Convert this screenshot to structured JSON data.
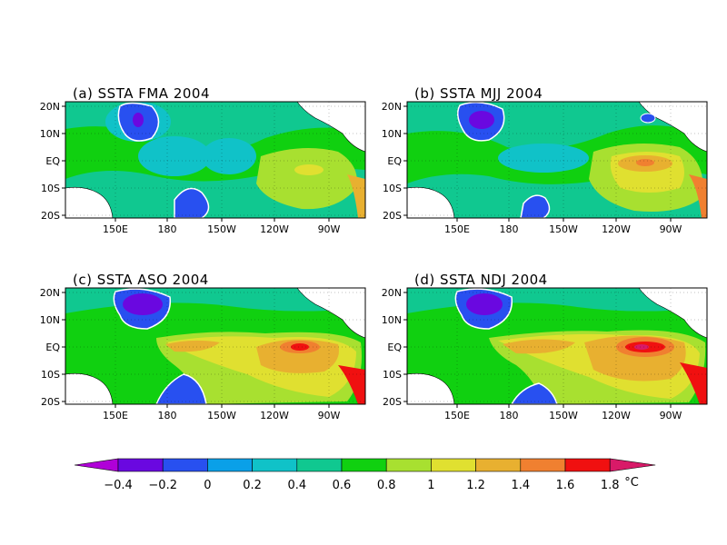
{
  "panels": [
    {
      "id": "a",
      "title": "(a)  SSTA  FMA  2004"
    },
    {
      "id": "b",
      "title": "(b)  SSTA  MJJ  2004"
    },
    {
      "id": "c",
      "title": "(c)  SSTA  ASO  2004"
    },
    {
      "id": "d",
      "title": "(d)  SSTA  NDJ  2004"
    }
  ],
  "lat_ticks": [
    "20N",
    "10N",
    "EQ",
    "10S",
    "20S"
  ],
  "lon_ticks": [
    "150E",
    "180",
    "150W",
    "120W",
    "90W"
  ],
  "colorbar": {
    "labels": [
      "-0.4",
      "-0.2",
      "0",
      "0.2",
      "0.4",
      "0.6",
      "0.8",
      "1",
      "1.2",
      "1.4",
      "1.6",
      "1.8"
    ],
    "unit": "°C",
    "colors": [
      "#b000d8",
      "#6a08e0",
      "#2850f0",
      "#0aa0e8",
      "#10c2c8",
      "#10c890",
      "#10d010",
      "#a8e030",
      "#e0e030",
      "#e8b030",
      "#f08030",
      "#f01010",
      "#d81a68"
    ]
  }
}
